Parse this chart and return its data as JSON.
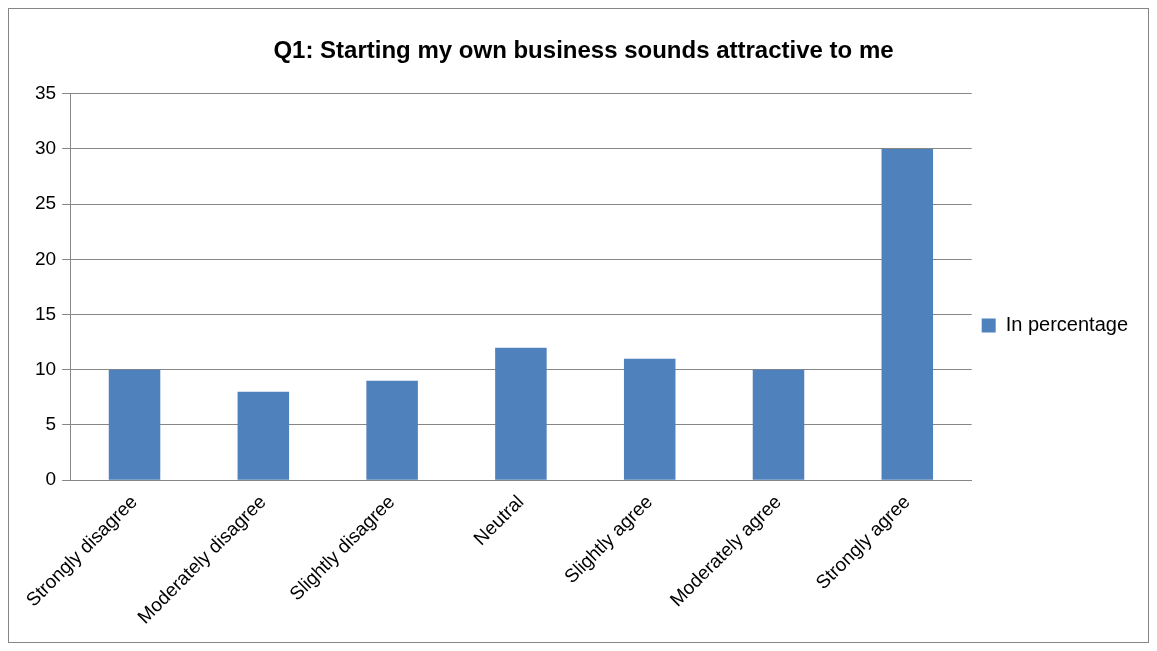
{
  "chart_data": {
    "type": "bar",
    "title": "Q1: Starting my own business sounds attractive to me",
    "categories": [
      "Strongly disagree",
      "Moderately disagree",
      "Slightly disagree",
      "Neutral",
      "Slightly agree",
      "Moderately agree",
      "Strongly agree"
    ],
    "series": [
      {
        "name": "In percentage",
        "color": "#4f81bd",
        "values": [
          10,
          8,
          9,
          12,
          11,
          10,
          30
        ]
      }
    ],
    "ylim": [
      0,
      35
    ],
    "yticks": [
      0,
      5,
      10,
      15,
      20,
      25,
      30,
      35
    ],
    "grid": "y",
    "legend": "right"
  }
}
